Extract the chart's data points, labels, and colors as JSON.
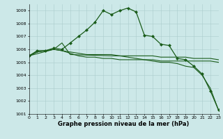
{
  "title": "Graphe pression niveau de la mer (hPa)",
  "bg_color": "#cce8e8",
  "grid_color": "#aacccc",
  "line_color": "#1a5c1a",
  "series": [
    {
      "x": [
        0,
        1,
        2,
        3,
        4,
        5,
        6,
        7,
        8,
        9,
        10,
        11,
        12,
        13,
        14,
        15,
        16,
        17,
        18,
        19,
        20,
        21,
        22,
        23
      ],
      "y": [
        1005.5,
        1005.9,
        1005.9,
        1006.1,
        1006.0,
        1006.5,
        1007.0,
        1007.5,
        1008.1,
        1009.0,
        1008.7,
        1009.0,
        1009.2,
        1008.9,
        1007.1,
        1007.0,
        1006.4,
        1006.3,
        1005.3,
        1005.2,
        1004.7,
        1004.1,
        1002.8,
        1001.3
      ],
      "marker": "D",
      "markersize": 2.0,
      "lw": 0.9
    },
    {
      "x": [
        0,
        1,
        2,
        3,
        4,
        5,
        6,
        7,
        8,
        9,
        10,
        11,
        12,
        13,
        14,
        15,
        16,
        17,
        18,
        19,
        20,
        21,
        22,
        23
      ],
      "y": [
        1005.5,
        1005.8,
        1005.9,
        1006.0,
        1005.9,
        1005.8,
        1005.7,
        1005.6,
        1005.6,
        1005.6,
        1005.6,
        1005.5,
        1005.5,
        1005.5,
        1005.5,
        1005.5,
        1005.4,
        1005.4,
        1005.4,
        1005.4,
        1005.3,
        1005.3,
        1005.3,
        1005.2
      ],
      "marker": null,
      "markersize": 0,
      "lw": 0.8
    },
    {
      "x": [
        0,
        1,
        2,
        3,
        4,
        5,
        6,
        7,
        8,
        9,
        10,
        11,
        12,
        13,
        14,
        15,
        16,
        17,
        18,
        19,
        20,
        21,
        22,
        23
      ],
      "y": [
        1005.5,
        1005.8,
        1005.9,
        1006.0,
        1005.9,
        1005.7,
        1005.5,
        1005.4,
        1005.4,
        1005.3,
        1005.3,
        1005.2,
        1005.2,
        1005.2,
        1005.2,
        1005.2,
        1005.1,
        1005.1,
        1005.1,
        1005.1,
        1005.1,
        1005.1,
        1005.1,
        1005.0
      ],
      "marker": null,
      "markersize": 0,
      "lw": 0.8
    },
    {
      "x": [
        0,
        3,
        4,
        5,
        10,
        11,
        12,
        13,
        14,
        15,
        16,
        17,
        18,
        19,
        20,
        21,
        22,
        23
      ],
      "y": [
        1005.5,
        1006.0,
        1006.5,
        1005.6,
        1005.5,
        1005.5,
        1005.4,
        1005.3,
        1005.2,
        1005.1,
        1005.0,
        1005.0,
        1004.9,
        1004.7,
        1004.6,
        1004.0,
        1003.0,
        1001.3
      ],
      "marker": null,
      "markersize": 0,
      "lw": 0.8
    }
  ],
  "xlim": [
    0,
    23
  ],
  "ylim": [
    1001.0,
    1009.5
  ],
  "xticks": [
    0,
    1,
    2,
    3,
    4,
    5,
    6,
    7,
    8,
    9,
    10,
    11,
    12,
    13,
    14,
    15,
    16,
    17,
    18,
    19,
    20,
    21,
    22,
    23
  ],
  "yticks": [
    1001,
    1002,
    1003,
    1004,
    1005,
    1006,
    1007,
    1008,
    1009
  ],
  "tick_fontsize": 4.5,
  "label_fontsize": 6.0
}
